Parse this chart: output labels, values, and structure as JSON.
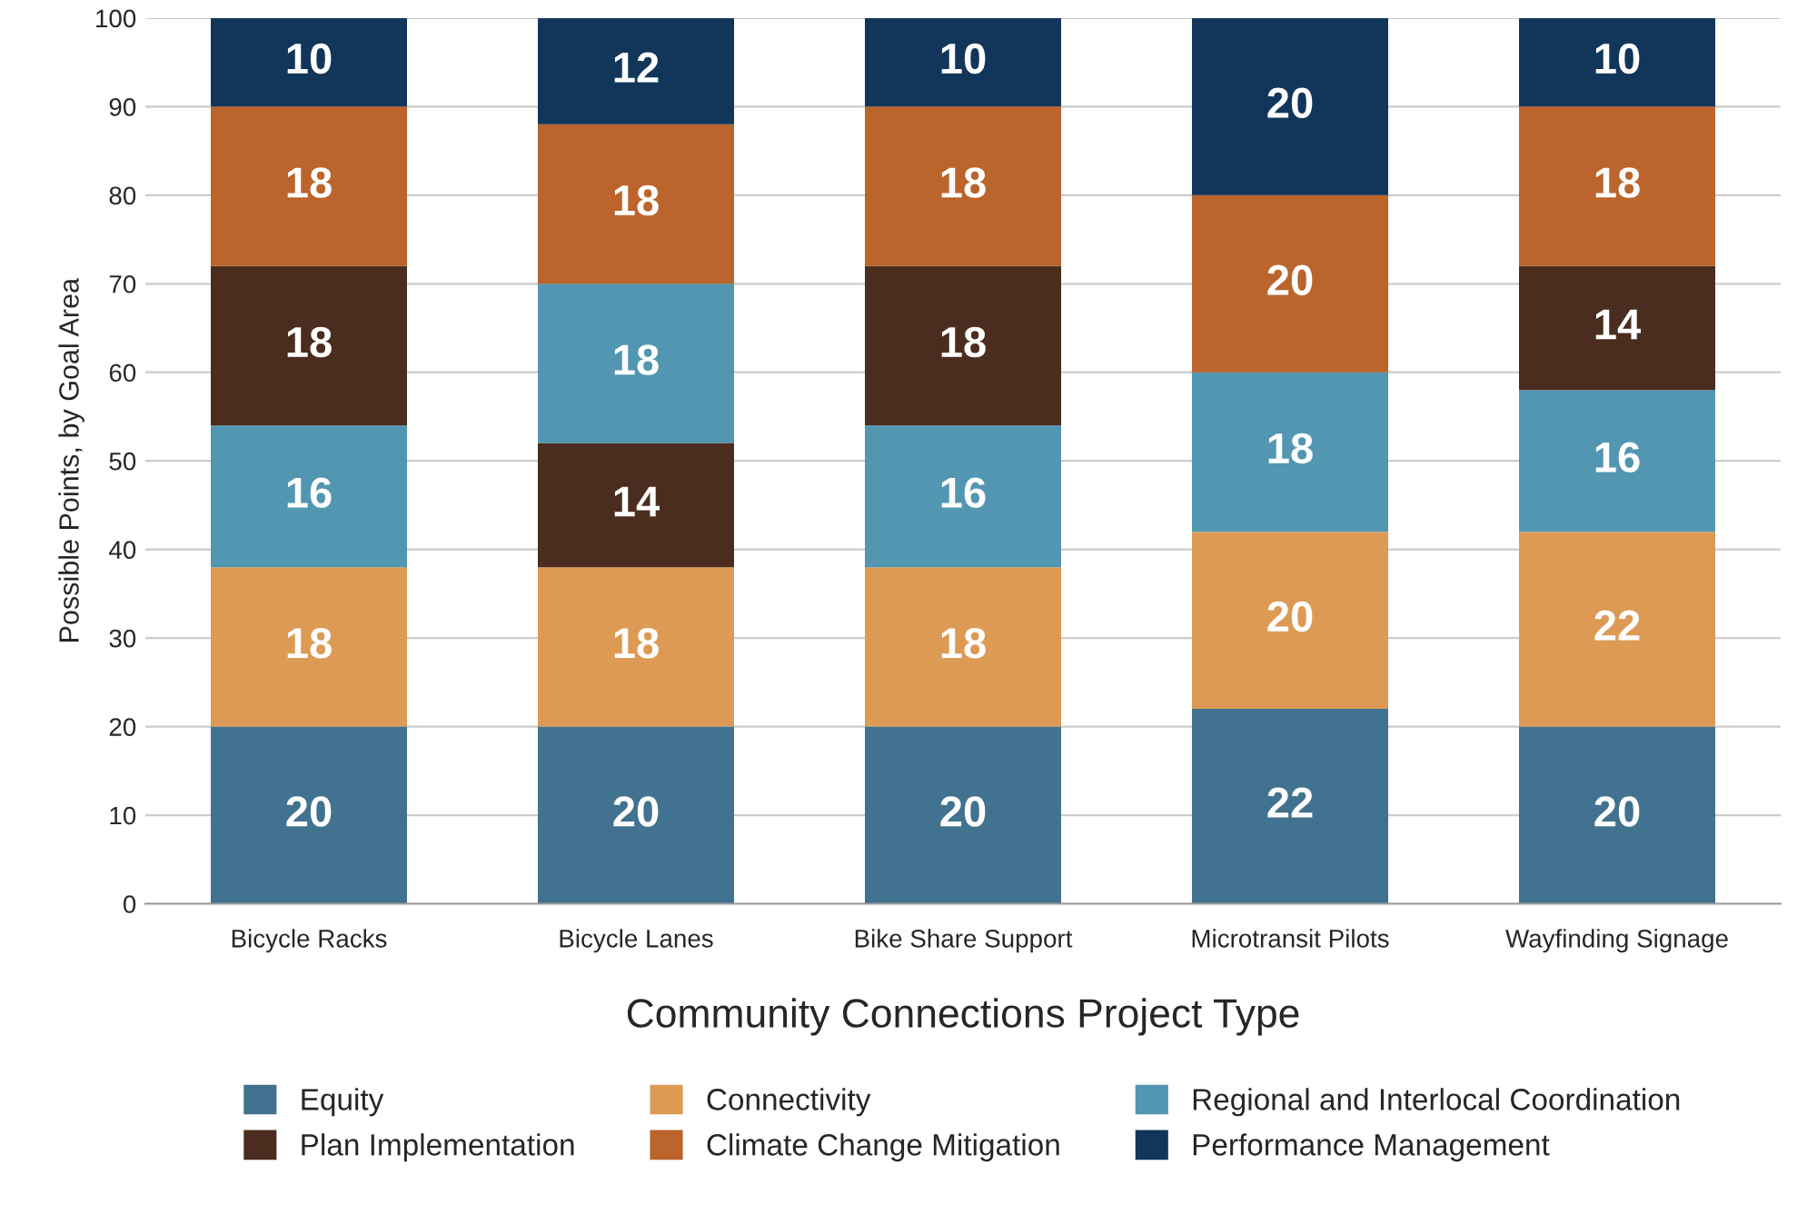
{
  "chart_data": {
    "type": "bar",
    "xlabel": "Community Connections Project Type",
    "ylabel": "Possible Points, by Goal Area",
    "categories": [
      "Bicycle Racks",
      "Bicycle Lanes",
      "Bike Share Support",
      "Microtransit Pilots",
      "Wayfinding Signage"
    ],
    "series": [
      {
        "name": "Equity",
        "color": "#41728f",
        "values": [
          20,
          20,
          20,
          22,
          20
        ],
        "base": [
          0,
          0,
          0,
          0,
          0
        ]
      },
      {
        "name": "Connectivity",
        "color": "#dd9a55",
        "values": [
          18,
          18,
          18,
          20,
          22
        ],
        "base": [
          20,
          20,
          20,
          22,
          20
        ]
      },
      {
        "name": "Regional and Interlocal Coordination",
        "color": "#5296b1",
        "values": [
          16,
          18,
          16,
          18,
          16
        ],
        "base": [
          38,
          52,
          38,
          42,
          42
        ]
      },
      {
        "name": "Plan Implementation",
        "color": "#4a2d1e",
        "values": [
          18,
          14,
          18,
          null,
          14
        ],
        "base": [
          54,
          38,
          54,
          null,
          58
        ]
      },
      {
        "name": "Climate Change Mitigation",
        "color": "#bb642b",
        "values": [
          18,
          18,
          18,
          20,
          18
        ],
        "base": [
          72,
          70,
          72,
          60,
          72
        ]
      },
      {
        "name": "Performance Management",
        "color": "#12365a",
        "values": [
          10,
          12,
          10,
          20,
          10
        ],
        "base": [
          90,
          88,
          90,
          80,
          90
        ]
      }
    ],
    "ylim": [
      0,
      100
    ],
    "yticks": [
      0,
      10,
      20,
      30,
      40,
      50,
      60,
      70,
      80,
      90,
      100
    ],
    "grid": "y",
    "legend": "bottom",
    "data_labels": true
  }
}
